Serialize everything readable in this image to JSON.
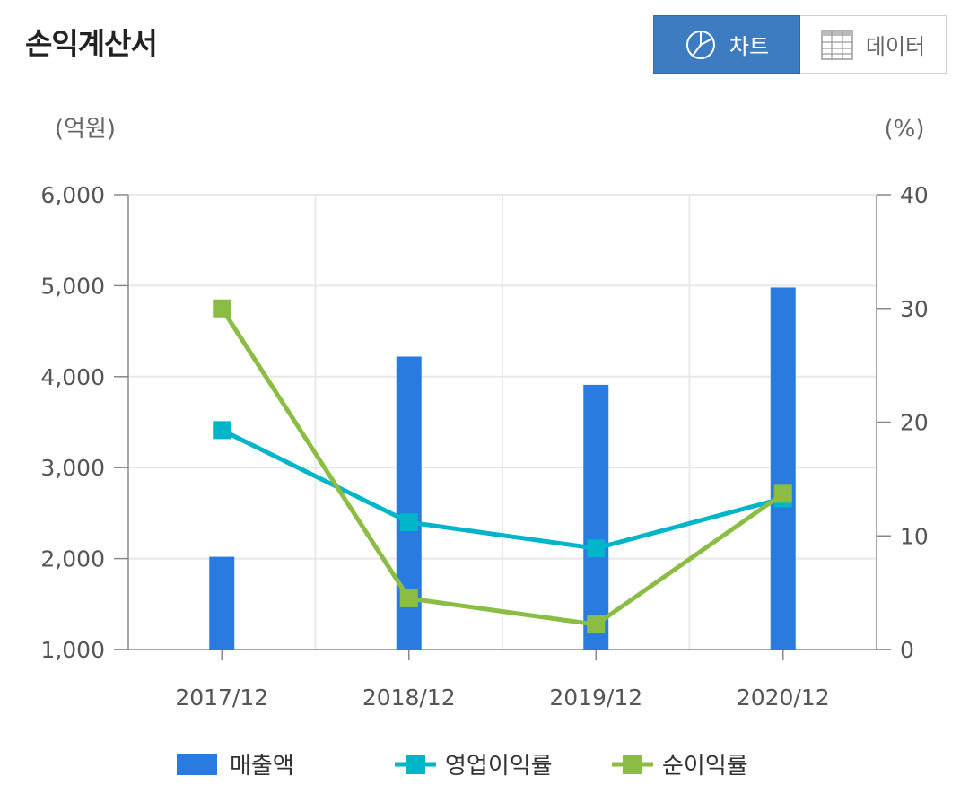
{
  "header": {
    "title": "손익계산서",
    "chart_button_label": "차트",
    "data_button_label": "데이터",
    "chart_button_icon": "pie-chart-icon",
    "data_button_icon": "table-grid-icon"
  },
  "colors": {
    "bar": "#2a7be0",
    "operating_margin": "#00b5c9",
    "net_margin": "#8bbd45",
    "active_button": "#3d7cc0"
  },
  "chart_data": {
    "type": "bar",
    "categories": [
      "2017/12",
      "2018/12",
      "2019/12",
      "2020/12"
    ],
    "left_axis": {
      "unit": "(억원)",
      "ylim": [
        1000,
        6000
      ],
      "ticks": [
        "1,000",
        "2,000",
        "3,000",
        "4,000",
        "5,000",
        "6,000"
      ]
    },
    "right_axis": {
      "unit": "(%)",
      "ylim": [
        0,
        40
      ],
      "ticks": [
        "0",
        "10",
        "20",
        "30",
        "40"
      ]
    },
    "series": [
      {
        "name": "매출액",
        "type": "bar",
        "axis": "left",
        "values": [
          2020,
          4220,
          3910,
          4980
        ]
      },
      {
        "name": "영업이익률",
        "type": "line",
        "axis": "right",
        "values": [
          19.3,
          11.2,
          8.9,
          13.3
        ]
      },
      {
        "name": "순이익률",
        "type": "line",
        "axis": "right",
        "values": [
          30.0,
          4.5,
          2.2,
          13.7
        ]
      }
    ],
    "grid": true,
    "legend": "bottom"
  }
}
